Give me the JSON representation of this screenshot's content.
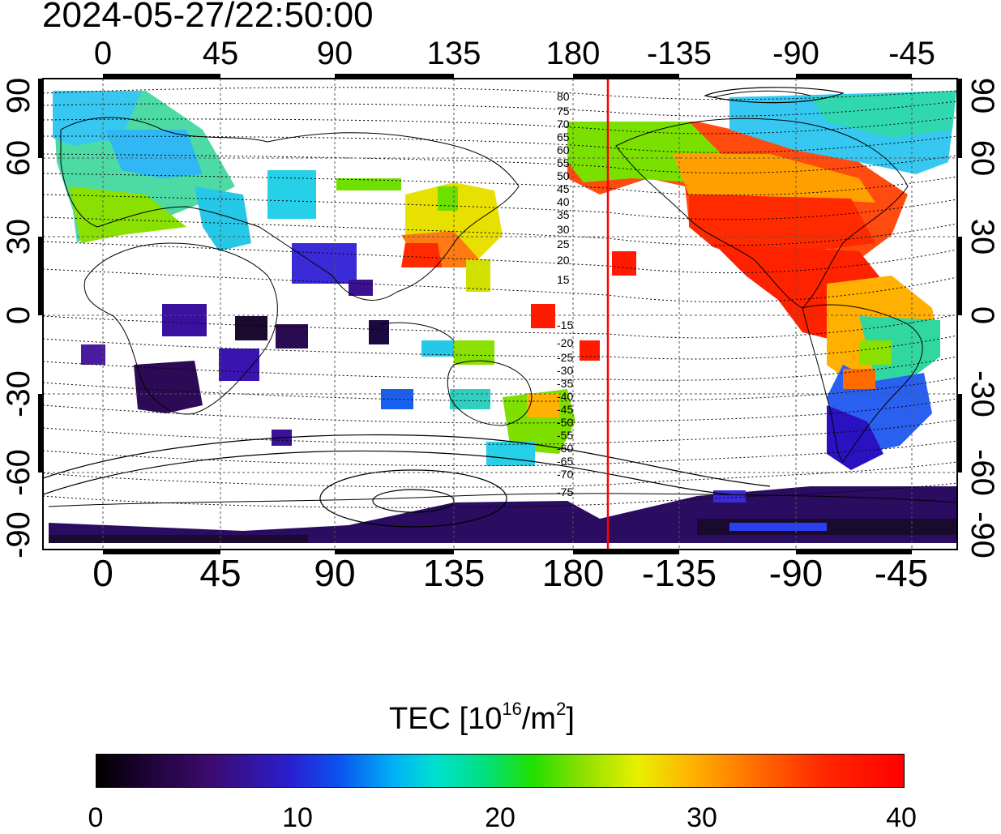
{
  "title": "2024-05-27/22:50:00",
  "lon_ticks": [
    "0",
    "45",
    "90",
    "135",
    "180",
    "-135",
    "-90",
    "-45"
  ],
  "lat_ticks": [
    "90",
    "60",
    "30",
    "0",
    "-30",
    "-60",
    "-90"
  ],
  "contour_labels": [
    "80",
    "75",
    "70",
    "65",
    "60",
    "55",
    "50",
    "45",
    "40",
    "35",
    "30",
    "25",
    "20",
    "15",
    "-15",
    "-20",
    "-25",
    "-30",
    "-35",
    "-40",
    "-45",
    "-50",
    "-55",
    "-60",
    "-65",
    "-70",
    "-75"
  ],
  "colorbar": {
    "title_prefix": "TEC  [10",
    "title_exp1": "16",
    "title_mid": "/m",
    "title_exp2": "2",
    "title_suffix": "]",
    "ticks": [
      "0",
      "10",
      "20",
      "30",
      "40"
    ],
    "min": 0,
    "max": 40
  },
  "colors": {
    "terminator": "#ff0000",
    "tec_low": "#000000",
    "tec_mid": "#00e080",
    "tec_high": "#ff0000"
  }
}
